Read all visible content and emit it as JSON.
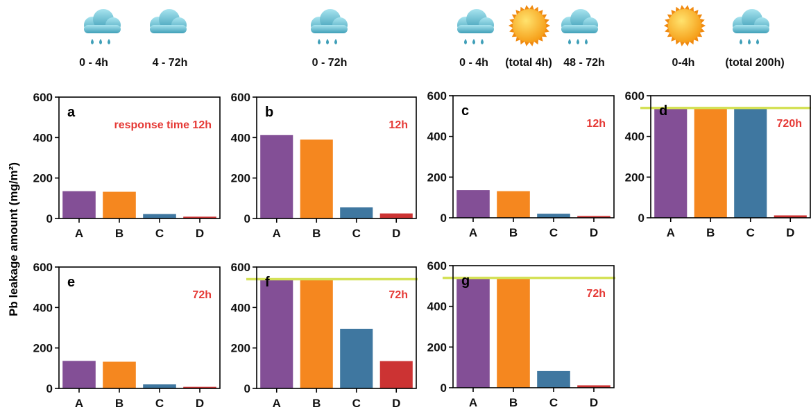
{
  "colors": {
    "A": "#834f96",
    "B": "#f5871f",
    "C": "#3f77a0",
    "D": "#cc3333",
    "threshold": "#d4e157",
    "response": "#e53935"
  },
  "y_axis_label": "Pb leakage amount (mg/m²)",
  "conditions": [
    {
      "icons": [
        "rain-cloud-icon",
        "cloud-icon"
      ],
      "labels": [
        "0 - 4h",
        "4 - 72h"
      ]
    },
    {
      "icons": [
        "rain-cloud-icon"
      ],
      "labels": [
        "0 - 72h"
      ]
    },
    {
      "icons": [
        "rain-cloud-icon",
        "sun-icon",
        "rain-cloud-icon"
      ],
      "labels": [
        "0 - 4h",
        "(total 4h)",
        "48 - 72h"
      ]
    },
    {
      "icons": [
        "sun-icon",
        "rain-cloud-icon"
      ],
      "labels": [
        "0-4h",
        "(total 200h)"
      ]
    }
  ],
  "chart_data": [
    {
      "type": "bar",
      "panel": "a",
      "annotation": "response time 12h",
      "categories": [
        "A",
        "B",
        "C",
        "D"
      ],
      "values": [
        135,
        132,
        22,
        9
      ],
      "ylim": [
        0,
        600
      ],
      "yticks": [
        0,
        200,
        400,
        600
      ],
      "threshold": null
    },
    {
      "type": "bar",
      "panel": "b",
      "annotation": "12h",
      "categories": [
        "A",
        "B",
        "C",
        "D"
      ],
      "values": [
        412,
        390,
        55,
        25
      ],
      "ylim": [
        0,
        600
      ],
      "yticks": [
        0,
        200,
        400,
        600
      ],
      "threshold": null
    },
    {
      "type": "bar",
      "panel": "c",
      "annotation": "12h",
      "categories": [
        "A",
        "B",
        "C",
        "D"
      ],
      "values": [
        136,
        131,
        20,
        9
      ],
      "ylim": [
        0,
        600
      ],
      "yticks": [
        0,
        200,
        400,
        600
      ],
      "threshold": null
    },
    {
      "type": "bar",
      "panel": "d",
      "annotation": "720h",
      "categories": [
        "A",
        "B",
        "C",
        "D"
      ],
      "values": [
        540,
        540,
        540,
        12
      ],
      "ylim": [
        0,
        600
      ],
      "yticks": [
        0,
        200,
        400,
        600
      ],
      "threshold": 540
    },
    {
      "type": "bar",
      "panel": "e",
      "annotation": "72h",
      "categories": [
        "A",
        "B",
        "C",
        "D"
      ],
      "values": [
        136,
        132,
        20,
        8
      ],
      "ylim": [
        0,
        600
      ],
      "yticks": [
        0,
        200,
        400,
        600
      ],
      "threshold": null
    },
    {
      "type": "bar",
      "panel": "f",
      "annotation": "72h",
      "categories": [
        "A",
        "B",
        "C",
        "D"
      ],
      "values": [
        540,
        540,
        295,
        135
      ],
      "ylim": [
        0,
        600
      ],
      "yticks": [
        0,
        200,
        400,
        600
      ],
      "threshold": 540
    },
    {
      "type": "bar",
      "panel": "g",
      "annotation": "72h",
      "categories": [
        "A",
        "B",
        "C",
        "D"
      ],
      "values": [
        540,
        540,
        82,
        12
      ],
      "ylim": [
        0,
        600
      ],
      "yticks": [
        0,
        200,
        400,
        600
      ],
      "threshold": 540
    }
  ]
}
